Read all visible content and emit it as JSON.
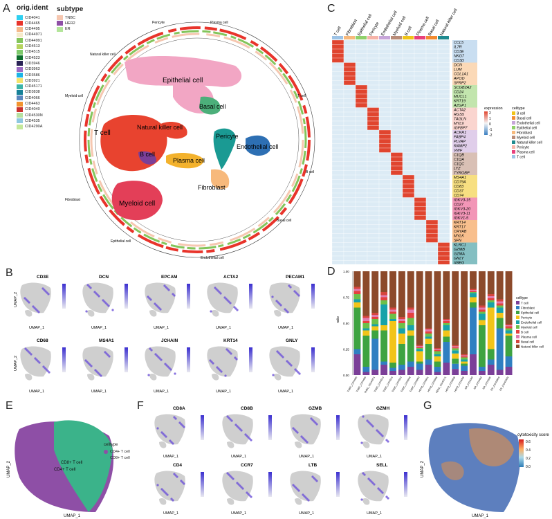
{
  "panels": {
    "A": "A",
    "B": "B",
    "C": "C",
    "D": "D",
    "E": "E",
    "F": "F",
    "G": "G"
  },
  "panelA": {
    "origident_title": "orig.ident",
    "origident": [
      {
        "label": "CID4041",
        "color": "#2fd0f0"
      },
      {
        "label": "CID4465",
        "color": "#e8342b"
      },
      {
        "label": "CID4495",
        "color": "#f5b98a"
      },
      {
        "label": "CID44971",
        "color": "#f6eacb"
      },
      {
        "label": "CID44991",
        "color": "#83c55b"
      },
      {
        "label": "CID4513",
        "color": "#b5d35e"
      },
      {
        "label": "CID4515",
        "color": "#7cc96a"
      },
      {
        "label": "CID4523",
        "color": "#0c6e2b"
      },
      {
        "label": "CID3946",
        "color": "#2a2356"
      },
      {
        "label": "CID3963",
        "color": "#9c6ac3"
      },
      {
        "label": "CID3586",
        "color": "#1cb4e6"
      },
      {
        "label": "CID3921",
        "color": "#f4e36b"
      },
      {
        "label": "CID45171",
        "color": "#3cb4a8"
      },
      {
        "label": "CID3838",
        "color": "#178198"
      },
      {
        "label": "CID4066",
        "color": "#5b87be"
      },
      {
        "label": "CID4463",
        "color": "#f2932e"
      },
      {
        "label": "CID4040",
        "color": "#c9302d"
      },
      {
        "label": "CID4530N",
        "color": "#b6e0a1"
      },
      {
        "label": "CID4535",
        "color": "#8ec8e0"
      },
      {
        "label": "CID4290A",
        "color": "#c4e89b"
      }
    ],
    "subtype_title": "subtype",
    "subtype": [
      {
        "label": "TNBC",
        "color": "#f6c7b0"
      },
      {
        "label": "HER2",
        "color": "#8e4fa6"
      },
      {
        "label": "ER",
        "color": "#b3e59a"
      }
    ],
    "clusters": [
      "Epithelial cell",
      "Basal cell",
      "Natural killer cell",
      "T cell",
      "B cell",
      "Plasma cell",
      "Pericyte",
      "Endothelial cell",
      "Fibroblast",
      "Myeloid cell"
    ],
    "ring_labels": [
      "Pericyte",
      "Plasma cell",
      "T cell",
      "Cluster\norig.ident",
      "B cell",
      "Basal cell",
      "Endothelial cell",
      "Epithelial cell",
      "Fibroblast",
      "Myeloid cell",
      "Natural killer cell"
    ]
  },
  "panelB": {
    "genes": [
      "CD3E",
      "DCN",
      "EPCAM",
      "ACTA2",
      "PECAM1",
      "CD68",
      "MS4A1",
      "JCHAIN",
      "KRT14",
      "GNLY"
    ],
    "xlabel": "UMAP_1",
    "ylabel": "UMAP_2"
  },
  "panelC": {
    "celltypes": [
      "T cell",
      "Fibroblast",
      "Epithelial cell",
      "Pericyte",
      "Endothelial cell",
      "Myeloid cell",
      "B cell",
      "Plasma cell",
      "Basal cell",
      "Natural killer cell"
    ],
    "colors": [
      "#9dc3e6",
      "#f7b97c",
      "#8fd06a",
      "#f6b3a8",
      "#c7a5d9",
      "#b98c78",
      "#f0c419",
      "#e8407c",
      "#f28b30",
      "#1f8a8f"
    ],
    "genes": [
      "CCL5",
      "IL7R",
      "CD3E",
      "NKG7",
      "CD3D",
      "DCN",
      "LUM",
      "COL1A1",
      "APOD",
      "SFRP2",
      "SCGB2A2",
      "CD24",
      "MUCL1",
      "KRT19",
      "AZGP1",
      "ACTA2",
      "RGS5",
      "TAGLN",
      "MYL9",
      "IGFBP7",
      "ACKR1",
      "FABP4",
      "PLVAP",
      "RAMP2",
      "VWF",
      "C1QB",
      "C1QA",
      "C1QC",
      "LYZ",
      "TYROBP",
      "MS4A1",
      "CD79A",
      "CD83",
      "CD37",
      "CD74",
      "IGKV3-15",
      "CD27",
      "IGKV3-20",
      "IGKV3-11",
      "IGKV1-5",
      "KRT14",
      "KRT17",
      "CRYAB",
      "MYLK",
      "SFN",
      "KLRC1",
      "GZMB",
      "GZMA",
      "GNLY",
      "XBEG"
    ],
    "legend_expression_title": "expression",
    "legend_expression_ticks": [
      "2",
      "1",
      "0",
      "-1",
      "-2"
    ],
    "legend_celltype_title": "celltype",
    "legend_celltypes": [
      "B cell",
      "Basal cell",
      "Endothelial cell",
      "Epithelial cell",
      "Fibroblast",
      "Myeloid cell",
      "Natural killer cell",
      "Pericyte",
      "Plasma cell",
      "T cell"
    ],
    "legend_celltype_colors": [
      "#f0c419",
      "#f28b30",
      "#c7a5d9",
      "#8fd06a",
      "#f7b97c",
      "#b98c78",
      "#1f8a8f",
      "#f6b3a8",
      "#e8407c",
      "#9dc3e6"
    ]
  },
  "chart_data": {
    "type": "bar",
    "ylabel": "ratio",
    "ylim": [
      0,
      1
    ],
    "yticks": [
      "0.00",
      "0.25",
      "0.50",
      "0.75",
      "1.00"
    ],
    "categories": [
      "TNBC_CID4465",
      "TNBC_CID4495",
      "TNBC_CID44971",
      "TNBC_CID4513",
      "TNBC_CID4515",
      "TNBC_CID4523",
      "TNBC_CID3946",
      "TNBC_CID3963",
      "HER2_CID3921",
      "HER2_CID3586",
      "HER2_CID45171",
      "HER2_CID3838",
      "HER2_CID4066",
      "ER_CID4040",
      "ER_CID4463",
      "ER_CID4535",
      "ER_CID4290A",
      "ER_CID4530N"
    ],
    "legend_title": "celltype",
    "series": [
      {
        "name": "T cell",
        "color": "#7b3f98",
        "values": [
          0.2,
          0.03,
          0.05,
          0.1,
          0.04,
          0.05,
          0.08,
          0.05,
          0.1,
          0.03,
          0.12,
          0.06,
          0.04,
          0.2,
          0.04,
          0.1,
          0.05,
          0.08
        ]
      },
      {
        "name": "Fibroblast",
        "color": "#2f7fc1",
        "values": [
          0.05,
          0.05,
          0.3,
          0.03,
          0.03,
          0.05,
          0.05,
          0.06,
          0.05,
          0.05,
          0.2,
          0.05,
          0.05,
          0.45,
          0.04,
          0.05,
          0.4,
          0.1
        ]
      },
      {
        "name": "Epithelial cell",
        "color": "#3ea341",
        "values": [
          0.4,
          0.3,
          0.08,
          0.3,
          0.05,
          0.2,
          0.25,
          0.02,
          0.15,
          0.05,
          0.05,
          0.05,
          0.02,
          0.05,
          0.4,
          0.1,
          0.1,
          0.2
        ]
      },
      {
        "name": "Pericyte",
        "color": "#f2c419",
        "values": [
          0.05,
          0.05,
          0.04,
          0.05,
          0.4,
          0.1,
          0.05,
          0.1,
          0.05,
          0.05,
          0.06,
          0.05,
          0.02,
          0.05,
          0.05,
          0.4,
          0.05,
          0.02
        ]
      },
      {
        "name": "Endothelial cell",
        "color": "#17a2a9",
        "values": [
          0.03,
          0.02,
          0.02,
          0.2,
          0.02,
          0.05,
          0.05,
          0.02,
          0.02,
          0.02,
          0.05,
          0.03,
          0.02,
          0.04,
          0.06,
          0.05,
          0.05,
          0.03
        ]
      },
      {
        "name": "Myeloid cell",
        "color": "#6cc04a",
        "values": [
          0.05,
          0.05,
          0.05,
          0.04,
          0.05,
          0.05,
          0.07,
          0.01,
          0.03,
          0.03,
          0.02,
          0.02,
          0.02,
          0.01,
          0.02,
          0.02,
          0.02,
          0.02
        ]
      },
      {
        "name": "B cell",
        "color": "#e5413f",
        "values": [
          0.03,
          0.02,
          0.02,
          0.03,
          0.02,
          0.02,
          0.05,
          0.01,
          0.02,
          0.01,
          0.02,
          0.01,
          0.01,
          0.01,
          0.02,
          0.02,
          0.02,
          0.02
        ]
      },
      {
        "name": "Plasma cell",
        "color": "#e07cae",
        "values": [
          0.02,
          0.03,
          0.02,
          0.02,
          0.02,
          0.02,
          0.03,
          0.01,
          0.02,
          0.01,
          0.01,
          0.01,
          0.01,
          0.01,
          0.02,
          0.02,
          0.02,
          0.01
        ]
      },
      {
        "name": "Basal cell",
        "color": "#d6453d",
        "values": [
          0.02,
          0.02,
          0.02,
          0.03,
          0.02,
          0.02,
          0.02,
          0.01,
          0.01,
          0.01,
          0.01,
          0.01,
          0.01,
          0.01,
          0.02,
          0.02,
          0.02,
          0.01
        ]
      },
      {
        "name": "Natural killer cell",
        "color": "#8c4a2b",
        "values": [
          0.15,
          0.43,
          0.4,
          0.2,
          0.35,
          0.44,
          0.35,
          0.71,
          0.55,
          0.74,
          0.46,
          0.72,
          0.8,
          0.17,
          0.33,
          0.22,
          0.27,
          0.51
        ]
      }
    ]
  },
  "panelE": {
    "legend_title": "celltype",
    "items": [
      {
        "label": "CD4+ T cell",
        "color": "#8e4fa6"
      },
      {
        "label": "CD8+ T cell",
        "color": "#3bb38a"
      }
    ],
    "cluster_labels": [
      "CD8+ T cell",
      "CD4+ T cell"
    ],
    "xlabel": "UMAP_1",
    "ylabel": "UMAP_2"
  },
  "panelF": {
    "genes": [
      "CD8A",
      "CD8B",
      "GZMB",
      "GZMH",
      "CD4",
      "CCR7",
      "LTB",
      "SELL"
    ],
    "xlabel": "UMAP_1",
    "ylabel": "UMAP_2"
  },
  "panelG": {
    "legend_title": "cytotoxicity score",
    "ticks": [
      "0.6",
      "0.4",
      "0.2",
      "0.0"
    ],
    "xlabel": "UMAP_1",
    "ylabel": "UMAP_2"
  }
}
